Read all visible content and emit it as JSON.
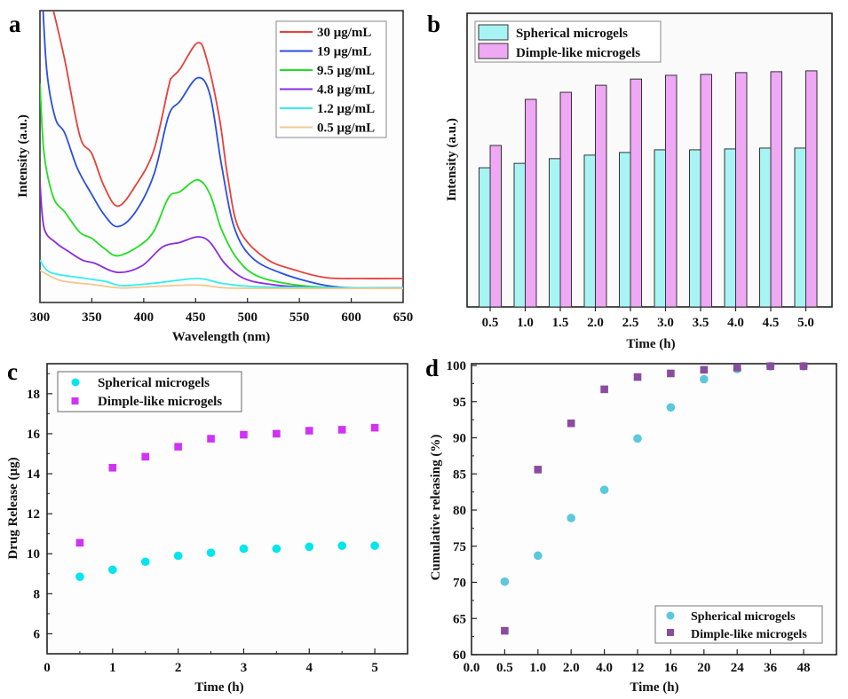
{
  "chart_data": [
    {
      "panel": "a",
      "type": "line",
      "title": "",
      "xlabel": "Wavelength (nm)",
      "ylabel": "Intensity (a.u.)",
      "xlim": [
        300,
        650
      ],
      "ylim": [
        0,
        100
      ],
      "xticks": [
        300,
        350,
        400,
        450,
        500,
        550,
        600,
        650
      ],
      "yticks": [],
      "grid": false,
      "legend_position": "top-right",
      "series": [
        {
          "name": "30 μg/mL",
          "color": "#e8403a",
          "x": [
            313,
            324,
            338.5,
            350,
            361.6,
            375,
            392,
            409.6,
            424,
            427,
            435,
            452,
            461,
            473,
            481,
            492,
            518,
            547,
            576,
            610,
            650
          ],
          "y": [
            100,
            83,
            57,
            51,
            40,
            33,
            40,
            52,
            74,
            77,
            80,
            89,
            83,
            63,
            43,
            25,
            15,
            11,
            8.5,
            8.2,
            8.2
          ]
        },
        {
          "name": "19 μg/mL",
          "color": "#2a4ee0",
          "x": [
            303,
            307,
            315,
            324,
            336,
            350,
            362,
            375,
            392,
            410,
            424,
            435,
            452,
            464,
            475,
            487,
            504,
            533,
            576,
            610,
            650
          ],
          "y": [
            100,
            78,
            63,
            58,
            46,
            37,
            30,
            26,
            31,
            44,
            64,
            69,
            77,
            71,
            47,
            26,
            15.5,
            10,
            5.8,
            5,
            5
          ]
        },
        {
          "name": "9.5 μg/mL",
          "color": "#22dd22",
          "x": [
            300,
            304,
            313,
            324,
            338.5,
            350,
            362,
            375,
            396,
            410,
            424,
            435,
            452,
            464,
            475,
            490,
            510,
            547,
            590,
            650
          ],
          "y": [
            75,
            51,
            36,
            31,
            24,
            22,
            18.5,
            16,
            19.5,
            24.6,
            36,
            38,
            42,
            37,
            25,
            15,
            9,
            6,
            5,
            5
          ]
        },
        {
          "name": "4.8 μg/mL",
          "color": "#8a2be2",
          "x": [
            300,
            304,
            315,
            327,
            341,
            353,
            375,
            398,
            418,
            435,
            452,
            464,
            478,
            495,
            518,
            560,
            650
          ],
          "y": [
            41,
            25.5,
            20.6,
            17.6,
            14.5,
            13.4,
            10.3,
            12.5,
            19,
            20.6,
            22.5,
            20.6,
            13.4,
            8.5,
            6.4,
            5.2,
            5
          ]
        },
        {
          "name": "1.2 μg/mL",
          "color": "#33eeee",
          "x": [
            300,
            310,
            338.5,
            362,
            379,
            410,
            452,
            478,
            520,
            650
          ],
          "y": [
            14.5,
            10.3,
            8.5,
            7.3,
            5.8,
            6.6,
            8.2,
            6.4,
            5.3,
            5
          ]
        },
        {
          "name": "0.5 μg/mL",
          "color": "#f2c890",
          "x": [
            300,
            320,
            350,
            378,
            410,
            452,
            480,
            540,
            650
          ],
          "y": [
            11,
            7.5,
            6.2,
            5,
            5.5,
            6,
            5,
            4.8,
            4.8
          ]
        }
      ]
    },
    {
      "panel": "b",
      "type": "bar",
      "title": "",
      "xlabel": "Time (h)",
      "ylabel": "Intensity (a.u.)",
      "categories": [
        "0.5",
        "1.0",
        "1.5",
        "2.0",
        "2.5",
        "3.0",
        "3.5",
        "4.0",
        "4.5",
        "5.0"
      ],
      "ylim": [
        0,
        100
      ],
      "yticks": [],
      "grid": false,
      "legend_position": "top-left",
      "series": [
        {
          "name": "Spherical microgels",
          "color": "#a8f4f4",
          "values": [
            47.4,
            48.9,
            50.5,
            51.7,
            52.6,
            53.5,
            53.5,
            53.8,
            54.1,
            54.1
          ]
        },
        {
          "name": "Dimple-like microgels",
          "color": "#eea8f4",
          "values": [
            55.0,
            70.7,
            73.1,
            75.5,
            77.6,
            78.9,
            79.2,
            79.8,
            80.1,
            80.4
          ]
        }
      ]
    },
    {
      "panel": "c",
      "type": "scatter",
      "title": "",
      "xlabel": "Time (h)",
      "ylabel": "Drug Release (μg)",
      "xlim": [
        0,
        5.5
      ],
      "ylim": [
        5,
        19.5
      ],
      "xticks": [
        0,
        1,
        2,
        3,
        4,
        5
      ],
      "yticks": [
        6,
        8,
        10,
        12,
        14,
        16,
        18
      ],
      "grid": false,
      "legend_position": "top-left",
      "series": [
        {
          "name": "Spherical microgels",
          "marker": "circle",
          "color": "#00e5ee",
          "x": [
            0.5,
            1,
            1.5,
            2,
            2.5,
            3,
            3.5,
            4,
            4.5,
            5
          ],
          "y": [
            8.85,
            9.2,
            9.6,
            9.9,
            10.05,
            10.25,
            10.25,
            10.35,
            10.4,
            10.4
          ]
        },
        {
          "name": "Dimple-like microgels",
          "marker": "square",
          "color": "#d033f5",
          "x": [
            0.5,
            1,
            1.5,
            2,
            2.5,
            3,
            3.5,
            4,
            4.5,
            5
          ],
          "y": [
            10.55,
            14.3,
            14.85,
            15.35,
            15.75,
            15.95,
            16.0,
            16.15,
            16.2,
            16.3
          ]
        }
      ]
    },
    {
      "panel": "d",
      "type": "scatter",
      "title": "",
      "xlabel": "Time (h)",
      "ylabel": "Cumulative releasing (%)",
      "categories": [
        "0.0",
        "0.5",
        "1.0",
        "2.0",
        "4.0",
        "12",
        "16",
        "20",
        "24",
        "36",
        "48"
      ],
      "ylim": [
        60,
        100
      ],
      "yticks": [
        60,
        65,
        70,
        75,
        80,
        85,
        90,
        95,
        100
      ],
      "grid": false,
      "legend_position": "bottom-right",
      "series": [
        {
          "name": "Spherical microgels",
          "marker": "circle",
          "color": "#5bc8dc",
          "x": [
            "0.5",
            "1.0",
            "2.0",
            "4.0",
            "12",
            "16",
            "20",
            "24",
            "36",
            "48"
          ],
          "y": [
            70.1,
            73.7,
            78.9,
            82.8,
            89.9,
            94.2,
            98.1,
            99.5,
            99.9,
            99.9
          ]
        },
        {
          "name": "Dimple-like microgels",
          "marker": "square",
          "color": "#8b4c9e",
          "x": [
            "0.5",
            "1.0",
            "2.0",
            "4.0",
            "12",
            "16",
            "20",
            "24",
            "36",
            "48"
          ],
          "y": [
            63.3,
            85.6,
            92.0,
            96.7,
            98.4,
            98.9,
            99.4,
            99.7,
            99.9,
            99.9
          ]
        }
      ]
    }
  ],
  "panel_labels": [
    "a",
    "b",
    "c",
    "d"
  ]
}
